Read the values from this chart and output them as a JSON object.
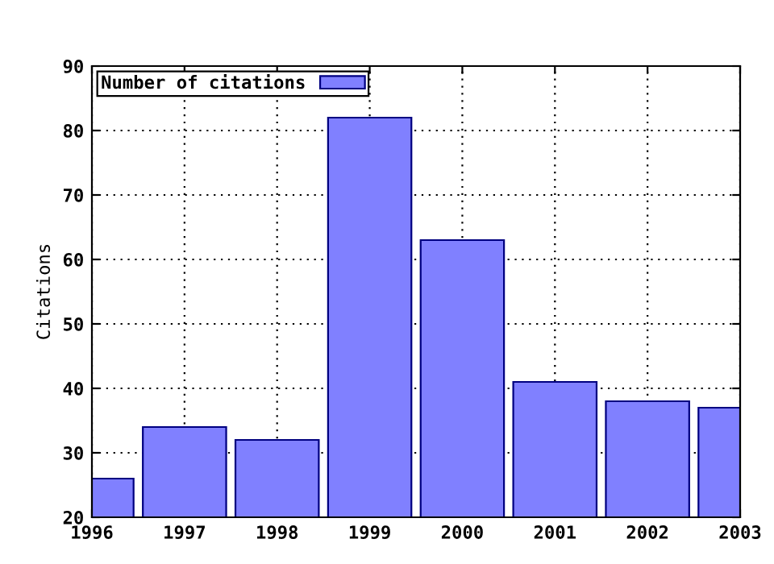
{
  "chart_data": {
    "type": "bar",
    "ylabel": "Citations",
    "x": [
      1996,
      1997,
      1998,
      1999,
      2000,
      2001,
      2002,
      2003
    ],
    "series": [
      {
        "name": "Number of citations",
        "color": "#8080ff",
        "values": [
          26,
          34,
          32,
          82,
          63,
          41,
          38,
          37
        ]
      }
    ],
    "xlim": [
      1996,
      2003
    ],
    "xticks": [
      1996,
      1997,
      1998,
      1999,
      2000,
      2001,
      2002,
      2003
    ],
    "ylim": [
      20,
      90
    ],
    "yticks": [
      20,
      30,
      40,
      50,
      60,
      70,
      80,
      90
    ],
    "grid": true,
    "legend": "top left"
  }
}
